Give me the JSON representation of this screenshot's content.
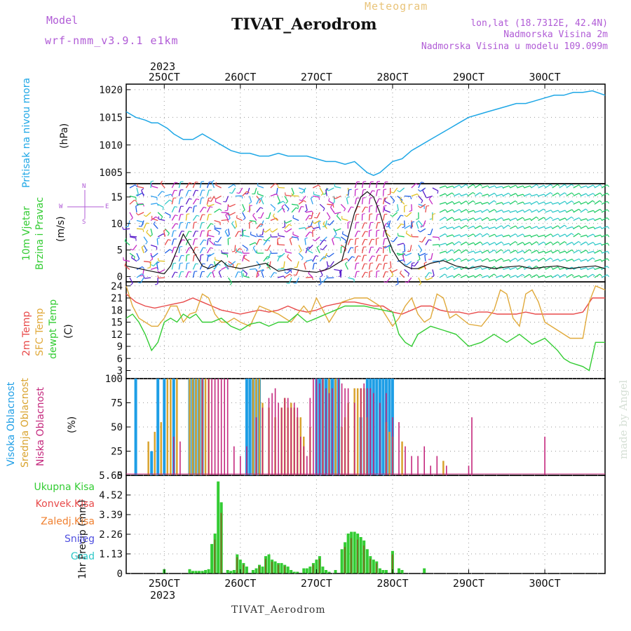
{
  "header": {
    "title": "TIVAT_Aerodrom",
    "model_label": "Model",
    "model_value": "wrf-nmm_v3.9.1 e1km",
    "meteogram": "Meteogram",
    "lonlat": "lon,lat (18.7312E, 42.4N)",
    "altitude": "Nadmorska Visina 2m",
    "model_altitude": "Nadmorska Visina u modelu 109.099m",
    "footer": "TIVAT_Aerodrom",
    "made_by": "made by Angel"
  },
  "axes_labels": {
    "year": "2023",
    "pressure": [
      "Pritisak na nivou mora",
      "(hPa)"
    ],
    "wind": [
      "10m Vjetar",
      "Brzina i Pravac",
      "(m/s)"
    ],
    "compass": {
      "n": "N",
      "s": "S",
      "e": "E",
      "w": "W"
    },
    "temp": [
      "2m Temp",
      "SFC Temp",
      "dewpt Temp",
      "(C)"
    ],
    "cloud": [
      "Visoka Oblacnost",
      "Srednja Oblacnost",
      "Niska Oblacnost",
      "(%)"
    ],
    "precip_unit": "1hr Precip (mm)",
    "precip_legend": [
      "Ukupna Kisa",
      "Konvek.Kisa",
      "Zaledj.Kisa",
      "Snijeg",
      "Grad"
    ]
  },
  "colors": {
    "pressure": "#1ea7e6",
    "temp2m": "#e84a4a",
    "sfc": "#e0a93a",
    "dew": "#33cc33",
    "cloud_high": "#1e9ee6",
    "cloud_mid": "#d9a32e",
    "cloud_low": "#c4287d",
    "rain_total": "#33cc33",
    "rain_conv": "#e84a4a",
    "rain_frz": "#f08030",
    "snow": "#5050e0",
    "hail": "#2ec8c8",
    "purple_text": "#b05bd6"
  },
  "chart_data": [
    {
      "type": "line",
      "name": "pressure",
      "x_ticks": [
        "25OCT",
        "26OCT",
        "27OCT",
        "28OCT",
        "29OCT",
        "30OCT"
      ],
      "x_hours": [
        0,
        24,
        48,
        72,
        96,
        120
      ],
      "xlim": [
        -12,
        139
      ],
      "ylim": [
        1003,
        1021
      ],
      "y_ticks": [
        1005,
        1010,
        1015,
        1020
      ],
      "grid": true,
      "series": [
        {
          "x": [
            -12,
            -9,
            -6,
            -4,
            -2,
            1,
            3,
            6,
            9,
            12,
            15,
            18,
            21,
            24,
            27,
            30,
            33,
            36,
            39,
            42,
            45,
            48,
            51,
            54,
            57,
            60,
            62,
            64,
            66,
            68,
            70,
            72,
            75,
            78,
            81,
            84,
            87,
            90,
            93,
            96,
            99,
            102,
            105,
            108,
            111,
            114,
            117,
            120,
            123,
            126,
            129,
            132,
            135,
            139
          ],
          "y": [
            1016,
            1015,
            1014.5,
            1014,
            1014,
            1013,
            1012,
            1011,
            1011,
            1012,
            1011,
            1010,
            1009,
            1008.5,
            1008.5,
            1008,
            1008,
            1008.5,
            1008,
            1008,
            1008,
            1007.5,
            1007,
            1007,
            1006.5,
            1007,
            1006,
            1005,
            1004.5,
            1005,
            1006,
            1007,
            1007.5,
            1009,
            1010,
            1011,
            1012,
            1013,
            1014,
            1015,
            1015.5,
            1016,
            1016.5,
            1017,
            1017.5,
            1017.5,
            1018,
            1018.5,
            1019,
            1019,
            1019.5,
            1019.5,
            1019.8,
            1019
          ]
        }
      ]
    },
    {
      "type": "line",
      "name": "wind",
      "xlim": [
        -12,
        139
      ],
      "ylim": [
        -1,
        17.5
      ],
      "y_ticks": [
        0,
        5,
        10,
        15
      ],
      "grid": true,
      "series": [
        {
          "x": [
            -12,
            -8,
            -4,
            0,
            2,
            4,
            6,
            8,
            10,
            12,
            14,
            16,
            18,
            20,
            24,
            28,
            32,
            36,
            40,
            44,
            48,
            52,
            56,
            60,
            62,
            64,
            66,
            68,
            70,
            72,
            74,
            76,
            78,
            80,
            84,
            88,
            92,
            96,
            100,
            104,
            108,
            112,
            116,
            120,
            124,
            128,
            132,
            136,
            139
          ],
          "y": [
            2,
            1.5,
            1,
            0.5,
            2,
            5,
            8,
            6,
            4,
            2,
            1.5,
            2,
            3,
            2,
            1.5,
            2,
            2.5,
            1,
            1.5,
            1,
            0.8,
            1.5,
            3,
            12,
            15,
            16,
            15,
            12,
            8,
            5,
            3,
            2,
            1.5,
            1.5,
            2.5,
            3,
            2,
            1.5,
            2,
            1.5,
            1.8,
            2,
            1.5,
            1.8,
            2,
            1.5,
            1.8,
            2,
            1.5
          ]
        }
      ]
    },
    {
      "type": "line",
      "name": "temperature",
      "xlim": [
        -12,
        139
      ],
      "ylim": [
        1,
        25
      ],
      "y_ticks": [
        3,
        6,
        9,
        12,
        15,
        18,
        21,
        24
      ],
      "grid": true,
      "series": [
        {
          "x": [
            -12,
            -9,
            -6,
            -3,
            0,
            3,
            6,
            9,
            12,
            15,
            18,
            21,
            24,
            27,
            30,
            33,
            36,
            39,
            42,
            45,
            48,
            51,
            54,
            57,
            60,
            63,
            66,
            69,
            72,
            75,
            78,
            81,
            84,
            87,
            90,
            93,
            96,
            99,
            102,
            105,
            108,
            111,
            114,
            117,
            120,
            123,
            126,
            129,
            132,
            135,
            139
          ],
          "y": [
            22,
            20,
            19,
            18.5,
            19,
            19.5,
            20,
            21,
            20,
            19,
            18,
            17.5,
            17,
            17.5,
            18,
            17.5,
            18,
            19,
            18,
            17.5,
            18,
            19,
            19.5,
            20,
            20,
            19.5,
            19,
            19,
            17.5,
            17,
            18,
            19,
            19,
            18,
            17.5,
            17.5,
            17,
            17.5,
            17.5,
            17,
            17,
            17,
            17.5,
            17,
            17,
            17,
            17,
            17,
            17.5,
            21,
            21
          ]
        },
        {
          "x": [
            -12,
            -10,
            -8,
            -6,
            -4,
            -2,
            0,
            2,
            4,
            6,
            8,
            10,
            12,
            14,
            16,
            18,
            20,
            22,
            24,
            27,
            30,
            33,
            36,
            40,
            44,
            46,
            48,
            50,
            52,
            56,
            60,
            64,
            68,
            72,
            74,
            76,
            78,
            80,
            82,
            84,
            86,
            88,
            90,
            92,
            96,
            100,
            104,
            106,
            108,
            110,
            112,
            114,
            116,
            118,
            120,
            124,
            128,
            132,
            134,
            136,
            139
          ],
          "y": [
            24,
            19,
            16,
            15,
            14,
            14,
            16,
            19,
            19,
            15,
            17,
            17.5,
            22,
            21,
            17,
            15,
            15,
            16,
            15,
            14,
            19,
            18,
            17,
            15,
            19,
            17,
            21,
            18,
            15,
            20,
            21,
            21,
            19,
            14,
            16,
            19,
            21,
            17,
            15,
            16,
            22,
            21,
            16,
            17,
            14.5,
            14,
            18,
            23,
            22,
            16,
            14,
            22,
            23,
            20,
            15,
            13,
            11,
            11,
            20,
            24,
            23
          ]
        },
        {
          "x": [
            -12,
            -10,
            -8,
            -6,
            -4,
            -2,
            0,
            2,
            4,
            6,
            8,
            10,
            12,
            15,
            18,
            21,
            24,
            27,
            30,
            33,
            36,
            39,
            42,
            45,
            48,
            51,
            54,
            57,
            60,
            63,
            66,
            69,
            72,
            74,
            76,
            78,
            80,
            84,
            88,
            92,
            96,
            100,
            104,
            108,
            112,
            116,
            120,
            124,
            126,
            128,
            130,
            132,
            134,
            136,
            139
          ],
          "y": [
            16,
            17,
            15,
            12,
            8,
            10,
            15,
            16,
            15,
            17,
            16,
            17,
            15,
            15,
            16,
            14,
            13,
            14.5,
            15,
            14,
            15,
            15,
            17,
            15,
            16,
            17,
            18,
            19,
            19,
            19,
            18.5,
            18,
            17.5,
            12,
            10,
            9,
            12,
            14,
            13,
            12,
            9,
            10,
            12,
            10,
            12,
            9.5,
            11,
            8,
            6,
            5,
            4.5,
            4,
            3,
            10,
            10
          ]
        }
      ]
    },
    {
      "type": "bar",
      "name": "cloud_cover",
      "xlim": [
        -12,
        139
      ],
      "ylim": [
        0,
        100
      ],
      "y_ticks": [
        0,
        25,
        50,
        75,
        100
      ],
      "grid": true,
      "series": [
        {
          "name": "Visoka Oblacnost",
          "x": [
            -9,
            -4,
            -2,
            0,
            3,
            8,
            9,
            10,
            11,
            12,
            26,
            27,
            28,
            29,
            30,
            48,
            49,
            50,
            51,
            52,
            53,
            54,
            55,
            62,
            64,
            65,
            66,
            67,
            68,
            69,
            70,
            71,
            72
          ],
          "values": [
            100,
            25,
            100,
            100,
            100,
            100,
            100,
            100,
            100,
            100,
            100,
            100,
            100,
            100,
            100,
            100,
            100,
            100,
            100,
            100,
            100,
            100,
            100,
            60,
            100,
            100,
            100,
            100,
            100,
            100,
            100,
            100,
            100
          ]
        },
        {
          "name": "Srednja Oblacnost",
          "x": [
            -5,
            -3,
            -1,
            1,
            2,
            4,
            8,
            9,
            10,
            11,
            12,
            13,
            14,
            28,
            29,
            30,
            31,
            33,
            35,
            37,
            38,
            39,
            40,
            41,
            42,
            43,
            44,
            46,
            50,
            52,
            54,
            56,
            57,
            58,
            60,
            61,
            62,
            63,
            64,
            70,
            71,
            72,
            75,
            88
          ],
          "values": [
            35,
            45,
            55,
            100,
            100,
            100,
            100,
            100,
            100,
            100,
            100,
            100,
            100,
            100,
            100,
            100,
            75,
            70,
            60,
            70,
            80,
            70,
            75,
            70,
            60,
            60,
            40,
            50,
            100,
            100,
            100,
            50,
            60,
            75,
            90,
            90,
            90,
            90,
            60,
            55,
            45,
            40,
            35,
            15
          ]
        },
        {
          "name": "Niska Oblacnost",
          "x": [
            3,
            5,
            12,
            14,
            15,
            16,
            17,
            18,
            19,
            20,
            22,
            24,
            26,
            29,
            31,
            33,
            34,
            35,
            36,
            37,
            38,
            39,
            40,
            41,
            42,
            43,
            44,
            45,
            46,
            47,
            48,
            49,
            50,
            51,
            52,
            53,
            55,
            56,
            57,
            58,
            60,
            62,
            63,
            64,
            65,
            66,
            68,
            70,
            72,
            74,
            76,
            78,
            80,
            82,
            84,
            86,
            89,
            96,
            97,
            120
          ],
          "values": [
            40,
            35,
            100,
            100,
            100,
            100,
            100,
            100,
            100,
            100,
            30,
            20,
            30,
            60,
            70,
            80,
            85,
            90,
            75,
            70,
            80,
            80,
            70,
            75,
            70,
            40,
            30,
            20,
            80,
            100,
            100,
            95,
            100,
            90,
            85,
            90,
            100,
            95,
            90,
            90,
            75,
            90,
            95,
            90,
            90,
            85,
            75,
            85,
            60,
            55,
            30,
            20,
            20,
            30,
            10,
            20,
            10,
            10,
            60,
            40
          ]
        }
      ]
    },
    {
      "type": "bar",
      "name": "precipitation",
      "xlim": [
        -12,
        139
      ],
      "ylim": [
        0,
        5.65
      ],
      "y_ticks": [
        0,
        1.13,
        2.26,
        3.39,
        4.52,
        5.65
      ],
      "grid": true,
      "series": [
        {
          "name": "Ukupna Kisa",
          "x": [
            0,
            8,
            9,
            10,
            11,
            12,
            13,
            14,
            15,
            16,
            17,
            18,
            20,
            21,
            22,
            23,
            24,
            25,
            26,
            28,
            29,
            30,
            31,
            32,
            33,
            34,
            35,
            36,
            37,
            38,
            39,
            40,
            41,
            42,
            44,
            45,
            46,
            47,
            48,
            49,
            50,
            51,
            52,
            54,
            56,
            57,
            58,
            59,
            60,
            61,
            62,
            63,
            64,
            65,
            66,
            67,
            68,
            69,
            70,
            72,
            74,
            75,
            82
          ],
          "values": [
            0.25,
            0.25,
            0.15,
            0.15,
            0.15,
            0.15,
            0.2,
            0.25,
            1.7,
            2.3,
            5.3,
            4.1,
            0.2,
            0.15,
            0.2,
            1.1,
            0.8,
            0.6,
            0.4,
            0.2,
            0.3,
            0.5,
            0.4,
            1.0,
            1.1,
            0.8,
            0.7,
            0.6,
            0.6,
            0.5,
            0.4,
            0.2,
            0.1,
            0.1,
            0.3,
            0.3,
            0.4,
            0.6,
            0.8,
            1.0,
            0.4,
            0.2,
            0.1,
            0.2,
            1.4,
            1.8,
            2.3,
            2.4,
            2.4,
            2.3,
            2.1,
            1.9,
            1.4,
            1.0,
            0.8,
            0.7,
            0.3,
            0.2,
            0.2,
            1.3,
            0.3,
            0.2,
            0.3
          ]
        }
      ]
    }
  ]
}
